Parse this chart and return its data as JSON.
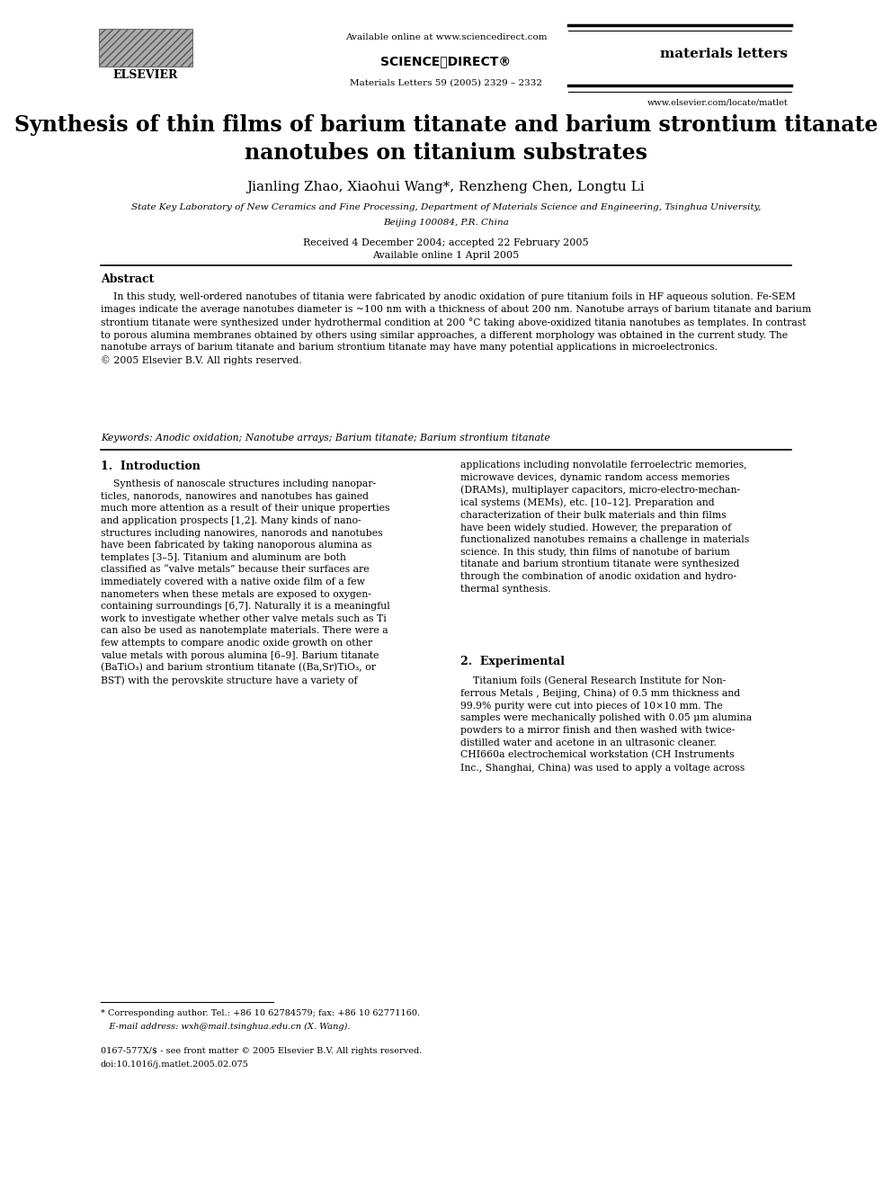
{
  "bg_color": "#ffffff",
  "text_color": "#000000",
  "available_online": "Available online at www.sciencedirect.com",
  "journal_name": "materials letters",
  "citation": "Materials Letters 59 (2005) 2329 – 2332",
  "website": "www.elsevier.com/locate/matlet",
  "elsevier_label": "ELSEVIER",
  "sciencedirect": "SCIENCEⓐDIRECT®",
  "title": "Synthesis of thin films of barium titanate and barium strontium titanate\nnanotubes on titanium substrates",
  "authors": "Jianling Zhao, Xiaohui Wang*, Renzheng Chen, Longtu Li",
  "affiliation_line1": "State Key Laboratory of New Ceramics and Fine Processing, Department of Materials Science and Engineering, Tsinghua University,",
  "affiliation_line2": "Beijing 100084, P.R. China",
  "received": "Received 4 December 2004; accepted 22 February 2005",
  "available": "Available online 1 April 2005",
  "abstract_title": "Abstract",
  "abstract_text": "    In this study, well-ordered nanotubes of titania were fabricated by anodic oxidation of pure titanium foils in HF aqueous solution. Fe-SEM\nimages indicate the average nanotubes diameter is ~100 nm with a thickness of about 200 nm. Nanotube arrays of barium titanate and barium\nstrontium titanate were synthesized under hydrothermal condition at 200 °C taking above-oxidized titania nanotubes as templates. In contrast\nto porous alumina membranes obtained by others using similar approaches, a different morphology was obtained in the current study. The\nnanotube arrays of barium titanate and barium strontium titanate may have many potential applications in microelectronics.\n© 2005 Elsevier B.V. All rights reserved.",
  "keywords": "Keywords: Anodic oxidation; Nanotube arrays; Barium titanate; Barium strontium titanate",
  "section1_title": "1.  Introduction",
  "section1_col1": "    Synthesis of nanoscale structures including nanopar-\nticles, nanorods, nanowires and nanotubes has gained\nmuch more attention as a result of their unique properties\nand application prospects [1,2]. Many kinds of nano-\nstructures including nanowires, nanorods and nanotubes\nhave been fabricated by taking nanoporous alumina as\ntemplates [3–5]. Titanium and aluminum are both\nclassified as “valve metals” because their surfaces are\nimmediately covered with a native oxide film of a few\nnanometers when these metals are exposed to oxygen-\ncontaining surroundings [6,7]. Naturally it is a meaningful\nwork to investigate whether other valve metals such as Ti\ncan also be used as nanotemplate materials. There were a\nfew attempts to compare anodic oxide growth on other\nvalue metals with porous alumina [6–9]. Barium titanate\n(BaTiO₃) and barium strontium titanate ((Ba,Sr)TiO₃, or\nBST) with the perovskite structure have a variety of",
  "section1_col2": "applications including nonvolatile ferroelectric memories,\nmicrowave devices, dynamic random access memories\n(DRAMs), multiplayer capacitors, micro-electro-mechan-\nical systems (MEMs), etc. [10–12]. Preparation and\ncharacterization of their bulk materials and thin films\nhave been widely studied. However, the preparation of\nfunctionalized nanotubes remains a challenge in materials\nscience. In this study, thin films of nanotube of barium\ntitanate and barium strontium titanate were synthesized\nthrough the combination of anodic oxidation and hydro-\nthermal synthesis.",
  "section2_title": "2.  Experimental",
  "section2_col2": "    Titanium foils (General Research Institute for Non-\nferrous Metals , Beijing, China) of 0.5 mm thickness and\n99.9% purity were cut into pieces of 10×10 mm. The\nsamples were mechanically polished with 0.05 μm alumina\npowders to a mirror finish and then washed with twice-\ndistilled water and acetone in an ultrasonic cleaner.\nCHI660a electrochemical workstation (CH Instruments\nInc., Shanghai, China) was used to apply a voltage across",
  "footnote_star": "* Corresponding author. Tel.: +86 10 62784579; fax: +86 10 62771160.",
  "footnote_email": "   E-mail address: wxh@mail.tsinghua.edu.cn (X. Wang).",
  "footnote_issn": "0167-577X/$ - see front matter © 2005 Elsevier B.V. All rights reserved.",
  "footnote_doi": "doi:10.1016/j.matlet.2005.02.075"
}
